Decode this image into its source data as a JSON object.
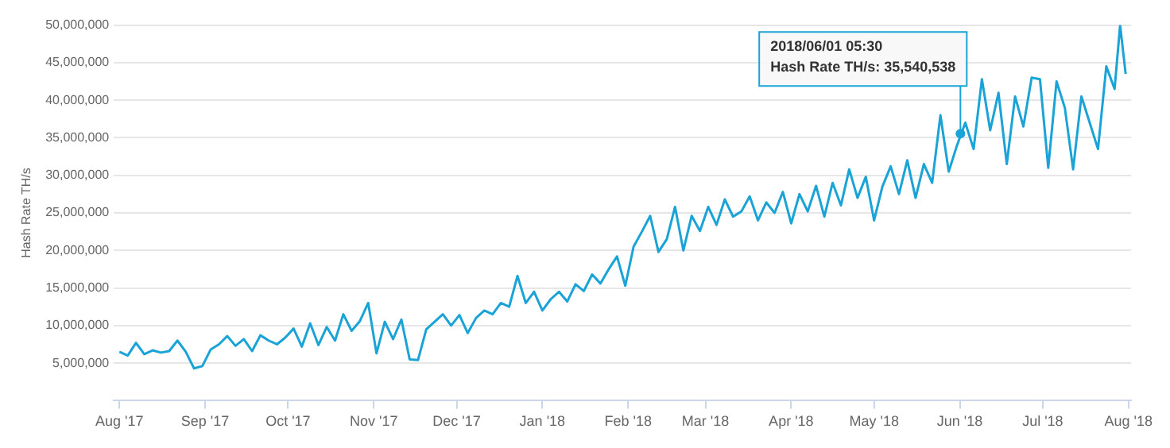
{
  "chart_data": {
    "type": "line",
    "ylabel": "Hash Rate TH/s",
    "x": [
      "2017-08-01",
      "2017-08-04",
      "2017-08-07",
      "2017-08-10",
      "2017-08-13",
      "2017-08-16",
      "2017-08-19",
      "2017-08-22",
      "2017-08-25",
      "2017-08-28",
      "2017-08-31",
      "2017-09-03",
      "2017-09-06",
      "2017-09-09",
      "2017-09-12",
      "2017-09-15",
      "2017-09-18",
      "2017-09-21",
      "2017-09-24",
      "2017-09-27",
      "2017-09-30",
      "2017-10-03",
      "2017-10-06",
      "2017-10-09",
      "2017-10-12",
      "2017-10-15",
      "2017-10-18",
      "2017-10-21",
      "2017-10-24",
      "2017-10-27",
      "2017-10-30",
      "2017-11-02",
      "2017-11-05",
      "2017-11-08",
      "2017-11-11",
      "2017-11-14",
      "2017-11-17",
      "2017-11-20",
      "2017-11-23",
      "2017-11-26",
      "2017-11-29",
      "2017-12-02",
      "2017-12-05",
      "2017-12-08",
      "2017-12-11",
      "2017-12-14",
      "2017-12-17",
      "2017-12-20",
      "2017-12-23",
      "2017-12-26",
      "2017-12-29",
      "2018-01-01",
      "2018-01-04",
      "2018-01-07",
      "2018-01-10",
      "2018-01-13",
      "2018-01-16",
      "2018-01-19",
      "2018-01-22",
      "2018-01-25",
      "2018-01-28",
      "2018-01-31",
      "2018-02-03",
      "2018-02-06",
      "2018-02-09",
      "2018-02-12",
      "2018-02-15",
      "2018-02-18",
      "2018-02-21",
      "2018-02-24",
      "2018-02-27",
      "2018-03-02",
      "2018-03-05",
      "2018-03-08",
      "2018-03-11",
      "2018-03-14",
      "2018-03-17",
      "2018-03-20",
      "2018-03-23",
      "2018-03-26",
      "2018-03-29",
      "2018-04-01",
      "2018-04-04",
      "2018-04-07",
      "2018-04-10",
      "2018-04-13",
      "2018-04-16",
      "2018-04-19",
      "2018-04-22",
      "2018-04-25",
      "2018-04-28",
      "2018-05-01",
      "2018-05-04",
      "2018-05-07",
      "2018-05-10",
      "2018-05-13",
      "2018-05-16",
      "2018-05-19",
      "2018-05-22",
      "2018-05-25",
      "2018-05-28",
      "2018-05-31",
      "2018-06-03",
      "2018-06-06",
      "2018-06-09",
      "2018-06-12",
      "2018-06-15",
      "2018-06-18",
      "2018-06-21",
      "2018-06-24",
      "2018-06-27",
      "2018-06-30",
      "2018-07-03",
      "2018-07-06",
      "2018-07-09",
      "2018-07-12",
      "2018-07-15",
      "2018-07-18",
      "2018-07-21",
      "2018-07-24",
      "2018-07-27",
      "2018-07-29",
      "2018-07-31"
    ],
    "series": [
      {
        "color": "#1aa3d6",
        "values": [
          6500000,
          6000000,
          7700000,
          6200000,
          6700000,
          6400000,
          6600000,
          8000000,
          6500000,
          4300000,
          4600000,
          6800000,
          7500000,
          8600000,
          7300000,
          8200000,
          6600000,
          8700000,
          8000000,
          7500000,
          8400000,
          9600000,
          7200000,
          10300000,
          7400000,
          9800000,
          8000000,
          11500000,
          9300000,
          10600000,
          13000000,
          6300000,
          10500000,
          8200000,
          10800000,
          5500000,
          5400000,
          9500000,
          10500000,
          11500000,
          10000000,
          11400000,
          9000000,
          11000000,
          12000000,
          11500000,
          13000000,
          12500000,
          16600000,
          13000000,
          14500000,
          12000000,
          13500000,
          14500000,
          13200000,
          15500000,
          14600000,
          16800000,
          15600000,
          17500000,
          19200000,
          15300000,
          20500000,
          22500000,
          24600000,
          19800000,
          21500000,
          25800000,
          20000000,
          24600000,
          22600000,
          25800000,
          23400000,
          26800000,
          24500000,
          25200000,
          27200000,
          24000000,
          26400000,
          25000000,
          27800000,
          23600000,
          27500000,
          25200000,
          28600000,
          24500000,
          29000000,
          26000000,
          30800000,
          27000000,
          29800000,
          24000000,
          28500000,
          31200000,
          27500000,
          32000000,
          27000000,
          31500000,
          29000000,
          38000000,
          30500000,
          34000000,
          37000000,
          33500000,
          42800000,
          36000000,
          41000000,
          31500000,
          40500000,
          36500000,
          43000000,
          42800000,
          31000000,
          42500000,
          39000000,
          30800000,
          40500000,
          37000000,
          33500000,
          44500000,
          41500000,
          50000000,
          43500000
        ]
      }
    ],
    "xlim": [
      "2017-07-30",
      "2018-08-02"
    ],
    "xticks": [
      {
        "value": "2017-08-01",
        "label": "Aug '17"
      },
      {
        "value": "2017-09-01",
        "label": "Sep '17"
      },
      {
        "value": "2017-10-01",
        "label": "Oct '17"
      },
      {
        "value": "2017-11-01",
        "label": "Nov '17"
      },
      {
        "value": "2017-12-01",
        "label": "Dec '17"
      },
      {
        "value": "2018-01-01",
        "label": "Jan '18"
      },
      {
        "value": "2018-02-01",
        "label": "Feb '18"
      },
      {
        "value": "2018-03-01",
        "label": "Mar '18"
      },
      {
        "value": "2018-04-01",
        "label": "Apr '18"
      },
      {
        "value": "2018-05-01",
        "label": "May '18"
      },
      {
        "value": "2018-06-01",
        "label": "Jun '18"
      },
      {
        "value": "2018-07-01",
        "label": "Jul '18"
      },
      {
        "value": "2018-08-01",
        "label": "Aug '18"
      }
    ],
    "ylim": [
      0,
      50000000
    ],
    "yticks": [
      {
        "value": 5000000,
        "label": "5,000,000"
      },
      {
        "value": 10000000,
        "label": "10,000,000"
      },
      {
        "value": 15000000,
        "label": "15,000,000"
      },
      {
        "value": 20000000,
        "label": "20,000,000"
      },
      {
        "value": 25000000,
        "label": "25,000,000"
      },
      {
        "value": 30000000,
        "label": "30,000,000"
      },
      {
        "value": 35000000,
        "label": "35,000,000"
      },
      {
        "value": 40000000,
        "label": "40,000,000"
      },
      {
        "value": 45000000,
        "label": "45,000,000"
      },
      {
        "value": 50000000,
        "label": "50,000,000"
      }
    ],
    "grid": "y",
    "marker": "none",
    "line_style": "solid",
    "annotations": [
      {
        "text": "2018/06/01 05:30\nHash Rate TH/s: 35,540,538",
        "x": "2018-06-01T05:30",
        "y": 35540538
      }
    ]
  }
}
